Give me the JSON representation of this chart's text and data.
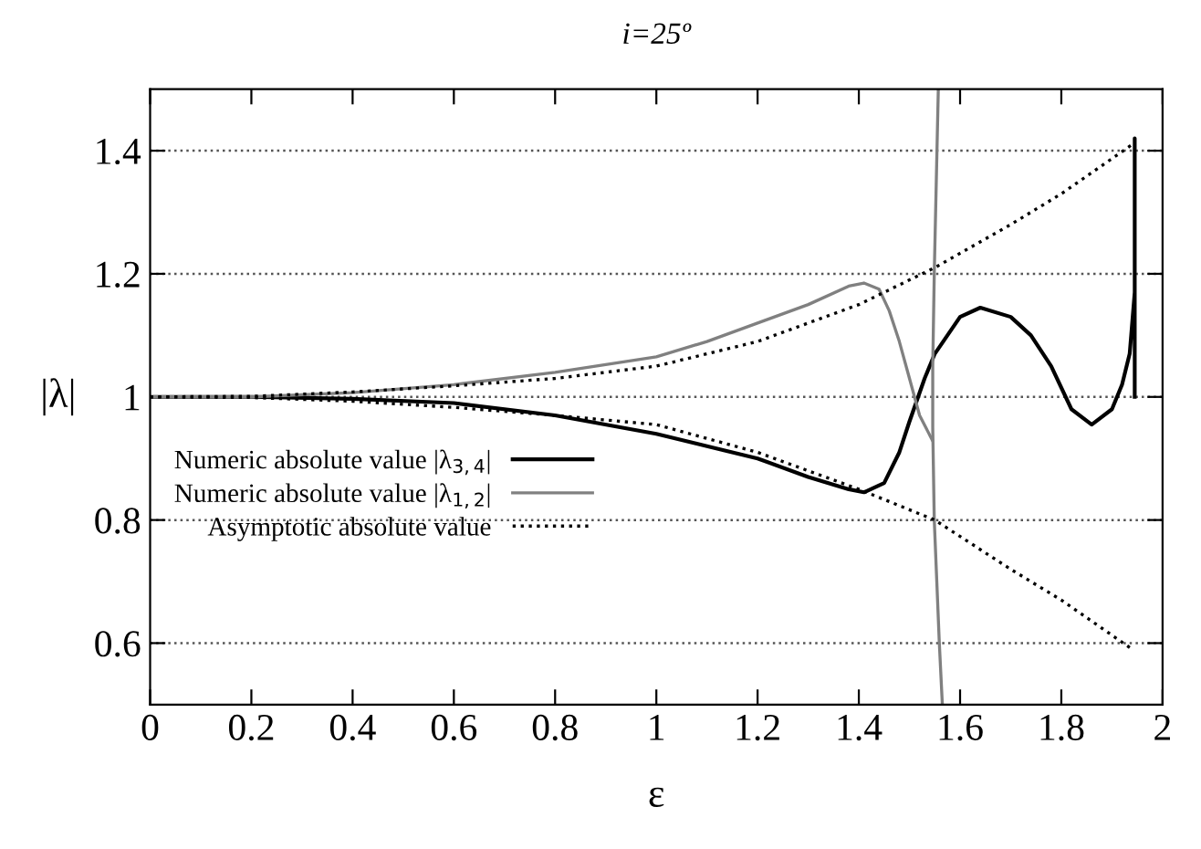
{
  "chart_data": {
    "type": "line",
    "title": "i=25º",
    "xlabel": "ε",
    "ylabel": "|λ|",
    "xlim": [
      0,
      2
    ],
    "ylim": [
      0.5,
      1.5
    ],
    "xticks": [
      0,
      0.2,
      0.4,
      0.6,
      0.8,
      1,
      1.2,
      1.4,
      1.6,
      1.8,
      2
    ],
    "yticks": [
      0.6,
      0.8,
      1,
      1.2,
      1.4
    ],
    "grid": "y",
    "legend": "left",
    "marker": "none",
    "series": [
      {
        "name": "Numeric absolute value |λ$_{3,4}$|",
        "color": "#000000",
        "line_style": "solid",
        "x": [
          0,
          0.2,
          0.4,
          0.6,
          0.8,
          1.0,
          1.1,
          1.2,
          1.3,
          1.38,
          1.41,
          1.45,
          1.48,
          1.5,
          1.53,
          1.55,
          1.6,
          1.64,
          1.7,
          1.74,
          1.78,
          1.82,
          1.86,
          1.9,
          1.92,
          1.935,
          1.945,
          1.945,
          1.945
        ],
        "values": [
          1,
          1,
          0.997,
          0.99,
          0.97,
          0.94,
          0.92,
          0.9,
          0.87,
          0.85,
          0.845,
          0.86,
          0.91,
          0.96,
          1.03,
          1.07,
          1.13,
          1.145,
          1.13,
          1.1,
          1.05,
          0.98,
          0.955,
          0.98,
          1.02,
          1.07,
          1.17,
          1.42,
          1.0
        ]
      },
      {
        "name": "Numeric absolute value |λ$_{1,2}$|",
        "color": "#808080",
        "line_style": "solid",
        "x": [
          0,
          0.2,
          0.4,
          0.6,
          0.8,
          1.0,
          1.1,
          1.2,
          1.3,
          1.38,
          1.41,
          1.44,
          1.46,
          1.48,
          1.5,
          1.52,
          1.545
        ],
        "values": [
          1,
          1,
          1.007,
          1.02,
          1.04,
          1.065,
          1.09,
          1.12,
          1.15,
          1.18,
          1.185,
          1.175,
          1.14,
          1.09,
          1.03,
          0.97,
          0.93
        ]
      },
      {
        "color": "#808080",
        "line_style": "solid",
        "x": [
          1.557,
          1.553,
          1.549,
          1.546,
          1.546,
          1.549,
          1.554,
          1.559,
          1.565
        ],
        "values": [
          1.5,
          1.35,
          1.2,
          1.05,
          0.95,
          0.8,
          0.7,
          0.6,
          0.5
        ]
      },
      {
        "name": "Asymptotic absolute value",
        "color": "#000000",
        "line_style": "dotted",
        "x": [
          0,
          0.2,
          0.4,
          0.6,
          0.8,
          1.0,
          1.2,
          1.4,
          1.55,
          1.7,
          1.8,
          1.94
        ],
        "values": [
          1,
          1.001,
          1.008,
          1.018,
          1.03,
          1.05,
          1.09,
          1.15,
          1.21,
          1.28,
          1.33,
          1.41
        ]
      },
      {
        "color": "#000000",
        "line_style": "dotted",
        "x": [
          0,
          0.2,
          0.4,
          0.6,
          0.8,
          1.0,
          1.2,
          1.4,
          1.55,
          1.7,
          1.8,
          1.94
        ],
        "values": [
          1,
          0.999,
          0.993,
          0.983,
          0.97,
          0.955,
          0.91,
          0.85,
          0.8,
          0.72,
          0.67,
          0.59
        ]
      }
    ]
  }
}
